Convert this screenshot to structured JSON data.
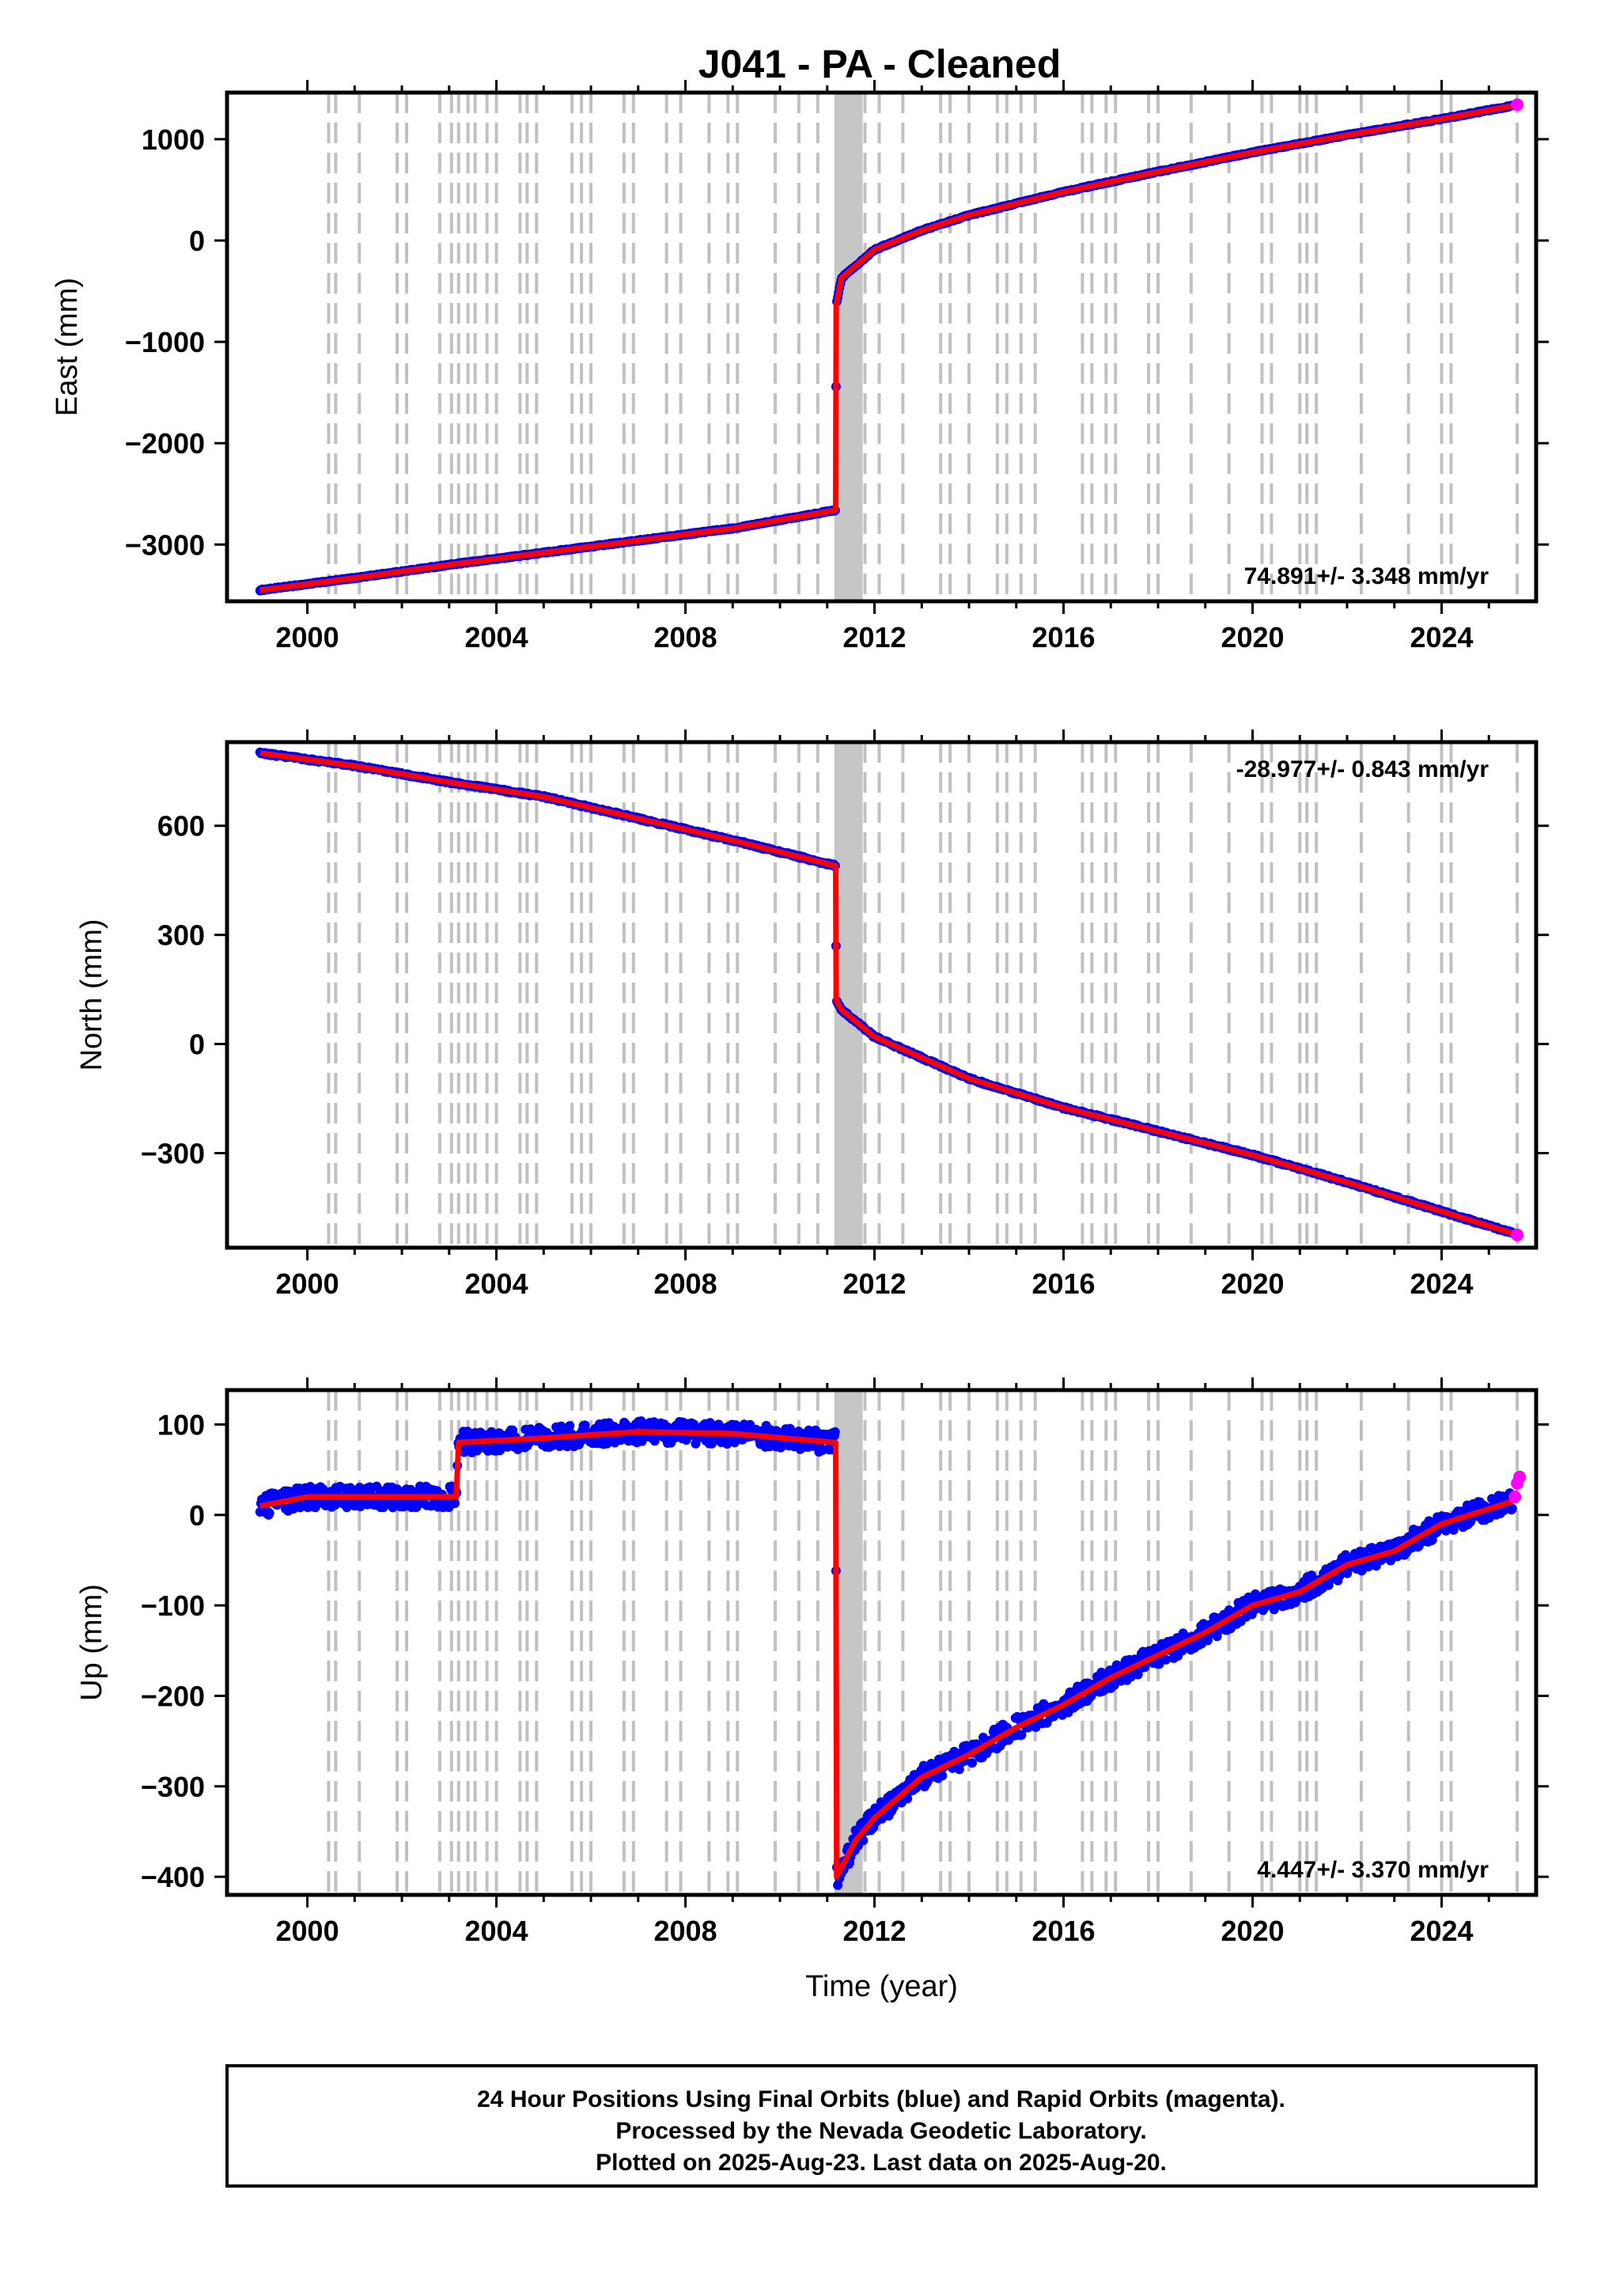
{
  "title": "J041  - PA - Cleaned",
  "footer": {
    "lines": [
      "24 Hour Positions Using Final Orbits (blue) and Rapid Orbits (magenta).",
      "Processed by the Nevada Geodetic Laboratory.",
      "Plotted on 2025-Aug-23. Last data on 2025-Aug-20."
    ]
  },
  "colors": {
    "final_orbits": "#0000ff",
    "rapid_orbits": "#ff00ff",
    "model": "#ff0000",
    "event_lines": "#c0c0c0"
  },
  "chart_data": [
    {
      "type": "scatter",
      "ylabel": "East (mm)",
      "xlabel": "",
      "xlim": [
        1998.3,
        2026.0
      ],
      "ylim": [
        -3560,
        1460
      ],
      "x_ticks": [
        2000,
        2004,
        2008,
        2012,
        2016,
        2020,
        2024
      ],
      "y_ticks": [
        1000,
        0,
        -1000,
        -2000,
        -3000
      ],
      "y_tick_labels": [
        "1000",
        "0",
        "−1000",
        "−2000",
        "−3000"
      ],
      "rate_label": "74.891+/- 3.348 mm/yr",
      "rate_position": "bottom-right",
      "series": [
        {
          "name": "Final Orbits",
          "color": "#0000ff",
          "x": [
            1999.0,
            2001.0,
            2003.0,
            2005.0,
            2007.0,
            2009.0,
            2011.18,
            2011.19,
            2011.3,
            2012.0,
            2013.0,
            2014.0,
            2016.0,
            2018.0,
            2020.0,
            2022.0,
            2024.0,
            2025.5
          ],
          "y": [
            -3450,
            -3330,
            -3200,
            -3080,
            -2960,
            -2840,
            -2660,
            -640,
            -370,
            -90,
            100,
            250,
            480,
            680,
            870,
            1040,
            1200,
            1330
          ]
        },
        {
          "name": "Rapid Orbits",
          "color": "#ff00ff",
          "x": [
            2025.6
          ],
          "y": [
            1340
          ]
        }
      ]
    },
    {
      "type": "scatter",
      "ylabel": "North (mm)",
      "xlabel": "",
      "xlim": [
        1998.3,
        2026.0
      ],
      "ylim": [
        -560,
        830
      ],
      "x_ticks": [
        2000,
        2004,
        2008,
        2012,
        2016,
        2020,
        2024
      ],
      "y_ticks": [
        600,
        300,
        0,
        -300
      ],
      "y_tick_labels": [
        "600",
        "300",
        "0",
        "−300"
      ],
      "rate_label": "-28.977+/- 0.843 mm/yr",
      "rate_position": "top-right",
      "series": [
        {
          "name": "Final Orbits",
          "color": "#0000ff",
          "x": [
            1999.0,
            2001.0,
            2003.0,
            2005.0,
            2007.0,
            2009.0,
            2011.18,
            2011.19,
            2011.3,
            2012.0,
            2014.0,
            2016.0,
            2018.0,
            2020.0,
            2022.0,
            2024.0,
            2025.5
          ],
          "y": [
            800,
            765,
            720,
            680,
            620,
            560,
            490,
            120,
            95,
            20,
            -95,
            -175,
            -240,
            -305,
            -380,
            -460,
            -520
          ]
        },
        {
          "name": "Rapid Orbits",
          "color": "#ff00ff",
          "x": [
            2025.6
          ],
          "y": [
            -525
          ]
        }
      ]
    },
    {
      "type": "scatter",
      "ylabel": "Up (mm)",
      "xlabel": "Time (year)",
      "xlim": [
        1998.3,
        2026.0
      ],
      "ylim": [
        -420,
        138
      ],
      "x_ticks": [
        2000,
        2004,
        2008,
        2012,
        2016,
        2020,
        2024
      ],
      "y_ticks": [
        100,
        0,
        -100,
        -200,
        -300,
        -400
      ],
      "y_tick_labels": [
        "100",
        "0",
        "−100",
        "−200",
        "−300",
        "−400"
      ],
      "rate_label": "4.447+/- 3.370 mm/yr",
      "rate_position": "bottom-right",
      "series": [
        {
          "name": "Final Orbits",
          "color": "#0000ff",
          "x": [
            1999.0,
            2000.0,
            2001.0,
            2002.0,
            2003.15,
            2003.2,
            2005.0,
            2007.0,
            2009.0,
            2011.18,
            2011.2,
            2011.6,
            2012.0,
            2013.0,
            2014.0,
            2015.0,
            2016.0,
            2017.0,
            2018.0,
            2019.0,
            2020.0,
            2021.0,
            2022.0,
            2023.0,
            2024.0,
            2025.5
          ],
          "y": [
            10,
            20,
            20,
            20,
            20,
            80,
            85,
            92,
            90,
            80,
            -400,
            -360,
            -335,
            -290,
            -265,
            -235,
            -210,
            -180,
            -155,
            -130,
            -100,
            -85,
            -55,
            -40,
            -10,
            15
          ]
        },
        {
          "name": "Rapid Orbits",
          "color": "#ff00ff",
          "x": [
            2025.55,
            2025.6,
            2025.65
          ],
          "y": [
            20,
            35,
            42
          ]
        }
      ]
    }
  ]
}
